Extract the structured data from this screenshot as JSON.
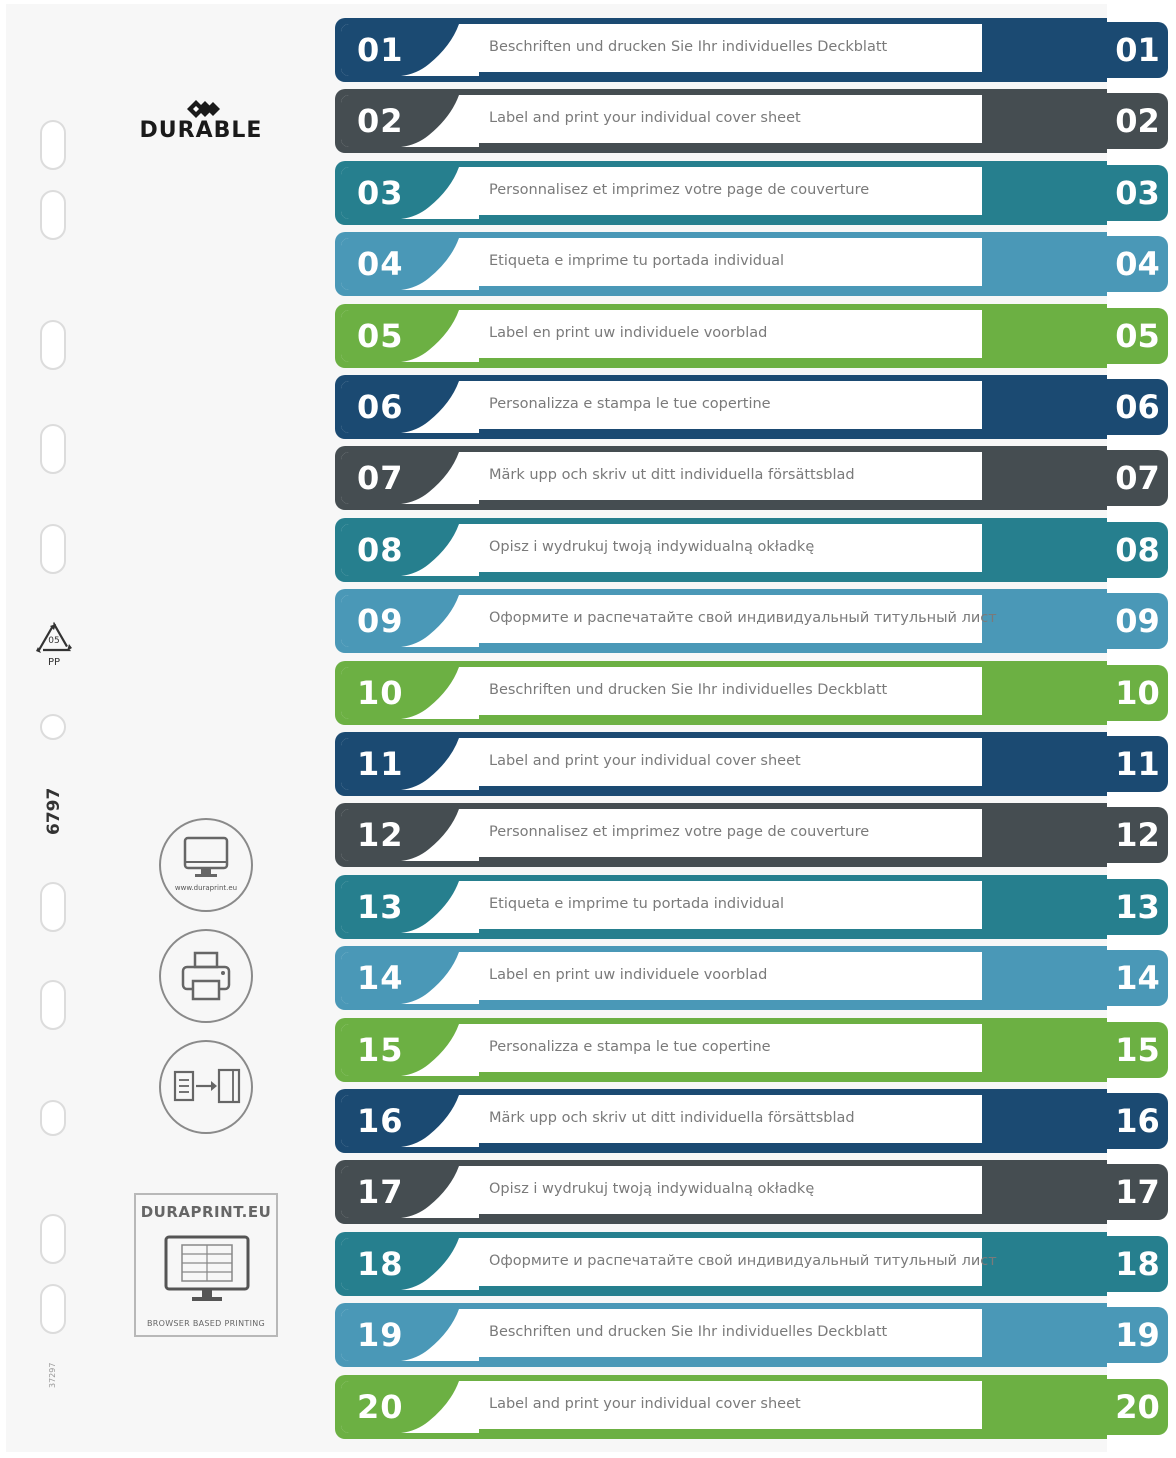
{
  "brand": {
    "name": "DURABLE"
  },
  "recycle": {
    "code": "05",
    "material": "PP"
  },
  "product_number": "6797",
  "small_code": "37297",
  "web_circle": {
    "url": "www.duraprint.eu"
  },
  "duraprint": {
    "title": "DURAPRINT.EU",
    "subtitle": "BROWSER BASED PRINTING"
  },
  "colors": {
    "navy": "#1b4a72",
    "slate": "#454d51",
    "teal": "#267f8e",
    "sky": "#4a98b7",
    "green": "#6cb043"
  },
  "rows": [
    {
      "num": "01",
      "text": "Beschriften und drucken Sie Ihr individuelles Deckblatt",
      "color": "navy"
    },
    {
      "num": "02",
      "text": "Label and print your individual cover sheet",
      "color": "slate"
    },
    {
      "num": "03",
      "text": "Personnalisez et imprimez votre page de couverture",
      "color": "teal"
    },
    {
      "num": "04",
      "text": "Etiqueta e imprime tu portada individual",
      "color": "sky"
    },
    {
      "num": "05",
      "text": "Label en print uw individuele voorblad",
      "color": "green"
    },
    {
      "num": "06",
      "text": "Personalizza e stampa le tue copertine",
      "color": "navy"
    },
    {
      "num": "07",
      "text": "Märk upp och skriv ut ditt individuella försättsblad",
      "color": "slate"
    },
    {
      "num": "08",
      "text": "Opisz i wydrukuj twoją indywidualną okładkę",
      "color": "teal"
    },
    {
      "num": "09",
      "text": "Оформите и распечатайте свой индивидуальный титульный лист",
      "color": "sky"
    },
    {
      "num": "10",
      "text": "Beschriften und drucken Sie Ihr individuelles Deckblatt",
      "color": "green"
    },
    {
      "num": "11",
      "text": "Label and print your individual cover sheet",
      "color": "navy"
    },
    {
      "num": "12",
      "text": "Personnalisez et imprimez votre page de couverture",
      "color": "slate"
    },
    {
      "num": "13",
      "text": "Etiqueta e imprime tu portada individual",
      "color": "teal"
    },
    {
      "num": "14",
      "text": "Label en print uw individuele voorblad",
      "color": "sky"
    },
    {
      "num": "15",
      "text": "Personalizza e stampa le tue copertine",
      "color": "green"
    },
    {
      "num": "16",
      "text": "Märk upp och skriv ut ditt individuella försättsblad",
      "color": "navy"
    },
    {
      "num": "17",
      "text": "Opisz i wydrukuj twoją indywidualną okładkę",
      "color": "slate"
    },
    {
      "num": "18",
      "text": "Оформите и распечатайте свой индивидуальный титульный лист",
      "color": "teal"
    },
    {
      "num": "19",
      "text": "Beschriften und drucken Sie Ihr individuelles Deckblatt",
      "color": "sky"
    },
    {
      "num": "20",
      "text": "Label and print your individual cover sheet",
      "color": "green"
    }
  ]
}
